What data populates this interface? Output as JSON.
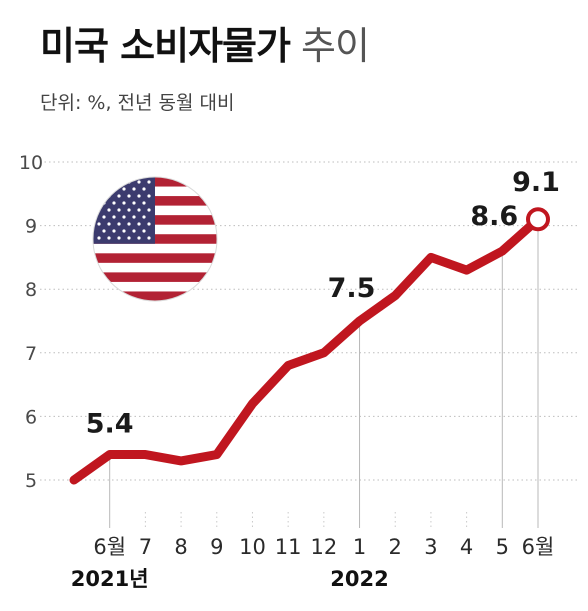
{
  "header": {
    "title_bold": "미국 소비자물가",
    "title_light": "추이",
    "subtitle": "단위: %, 전년 동월 대비"
  },
  "chart_data": {
    "type": "line",
    "x": [
      "2021-05",
      "2021-06",
      "2021-07",
      "2021-08",
      "2021-09",
      "2021-10",
      "2021-11",
      "2021-12",
      "2022-01",
      "2022-02",
      "2022-03",
      "2022-04",
      "2022-05",
      "2022-06"
    ],
    "x_tick_labels": [
      "",
      "6월",
      "7",
      "8",
      "9",
      "10",
      "11",
      "12",
      "1",
      "2",
      "3",
      "4",
      "5",
      "6월"
    ],
    "year_labels": [
      "2021년",
      "2022"
    ],
    "series": [
      {
        "values": [
          5.0,
          5.4,
          5.4,
          5.3,
          5.4,
          6.2,
          6.8,
          7.0,
          7.5,
          7.9,
          8.5,
          8.3,
          8.6,
          9.1
        ]
      }
    ],
    "ylim": [
      5,
      10
    ],
    "y_ticks": [
      "5",
      "6",
      "7",
      "8",
      "9",
      "10"
    ],
    "data_labels": [
      "5.4",
      "7.5",
      "8.6",
      "9.1"
    ],
    "grid": "horizontal dotted",
    "line_color": "#c0161f",
    "flag_icon": "us-flag-icon"
  }
}
